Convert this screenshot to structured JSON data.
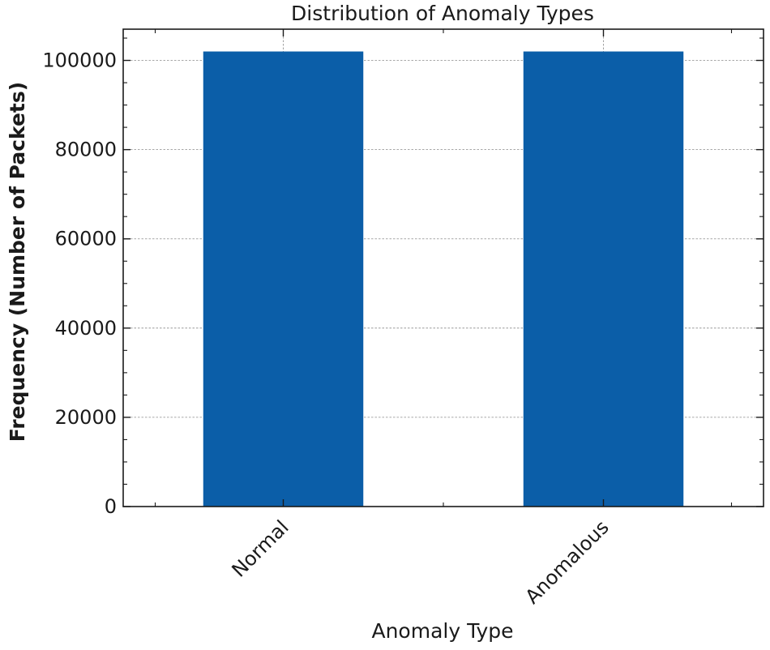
{
  "chart_data": {
    "type": "bar",
    "title": "Distribution of Anomaly Types",
    "xlabel": "Anomaly Type",
    "ylabel": "Frequency (Number of Packets)",
    "categories": [
      "Normal",
      "Anomalous"
    ],
    "values": [
      102000,
      102000
    ],
    "ylim": [
      0,
      107000
    ],
    "yticks": [
      0,
      20000,
      40000,
      60000,
      80000,
      100000
    ],
    "ytick_labels": [
      "0",
      "20000",
      "40000",
      "60000",
      "80000",
      "100000"
    ],
    "grid": true,
    "bar_color": "#0b5ea8",
    "legend": "none"
  }
}
